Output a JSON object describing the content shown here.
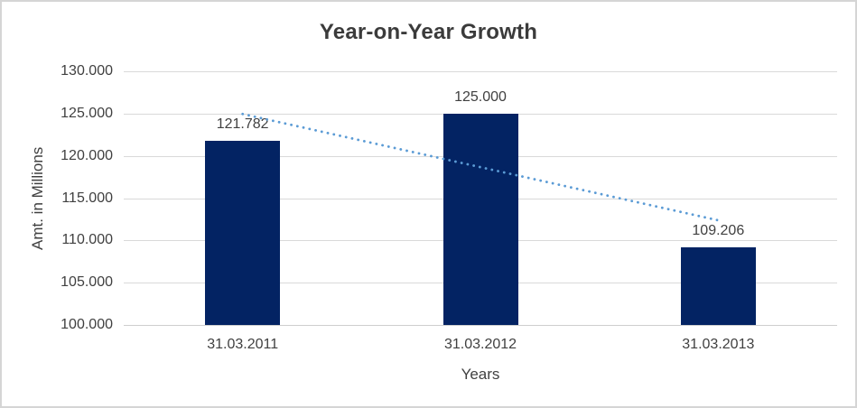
{
  "chart_data": {
    "type": "bar",
    "title": "Year-on-Year Growth",
    "categories": [
      "31.03.2011",
      "31.03.2012",
      "31.03.2013"
    ],
    "values": [
      121782,
      125000,
      109206
    ],
    "value_labels": [
      "121.782",
      "125.000",
      "109.206"
    ],
    "xlabel": "Years",
    "ylabel": "Amt. in Millions",
    "ylim": [
      100000,
      130000
    ],
    "ytick_step": 5000,
    "ytick_labels": [
      "100.000",
      "105.000",
      "110.000",
      "115.000",
      "120.000",
      "125.000",
      "130.000"
    ],
    "grid": true,
    "legend": "none",
    "trendline": {
      "type": "linear",
      "style": "dotted",
      "color": "#5B9BD5"
    },
    "colors": {
      "bar": "#032363",
      "gridline": "#d9d9d9",
      "axis_line": "#cfcfcf",
      "text": "#404040",
      "title_text": "#3b3b3b",
      "frame_border": "#d5d5d5",
      "background": "#ffffff"
    }
  }
}
